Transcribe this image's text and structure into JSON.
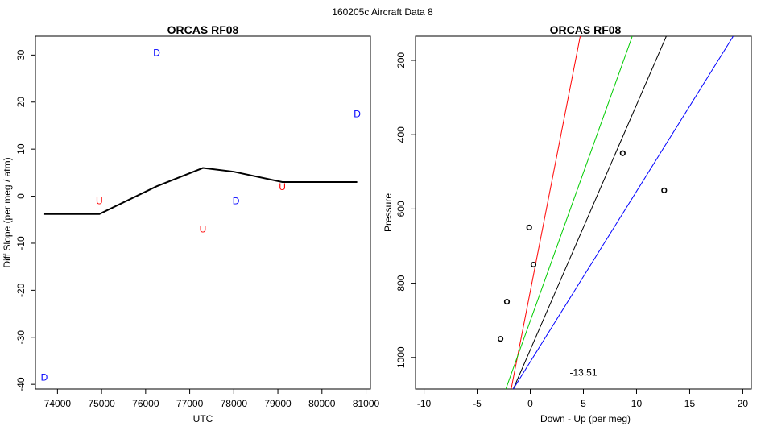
{
  "page_title": "160205c   Aircraft Data 8",
  "chart_data": [
    {
      "type": "line",
      "title": "ORCAS RF08",
      "xlabel": "UTC",
      "ylabel": "Diff Slope (per meg / atm)",
      "xlim": [
        73500,
        81100
      ],
      "ylim": [
        -41,
        34
      ],
      "xticks": [
        74000,
        75000,
        76000,
        77000,
        78000,
        79000,
        80000,
        81000
      ],
      "yticks": [
        -40,
        -30,
        -20,
        -10,
        0,
        10,
        20,
        30
      ],
      "series": [
        {
          "color": "#000000",
          "x": [
            73700,
            74950,
            76250,
            77300,
            78000,
            79100,
            80800
          ],
          "y": [
            -3.8,
            -3.8,
            2.1,
            6.0,
            5.2,
            3.0,
            3.0
          ]
        }
      ],
      "markers": [
        {
          "label": "D",
          "color": "#0000ff",
          "x": 73700,
          "y": -38.5
        },
        {
          "label": "U",
          "color": "#ff0000",
          "x": 74950,
          "y": -1.0
        },
        {
          "label": "D",
          "color": "#0000ff",
          "x": 76250,
          "y": 30.5
        },
        {
          "label": "U",
          "color": "#ff0000",
          "x": 77300,
          "y": -7.0
        },
        {
          "label": "D",
          "color": "#0000ff",
          "x": 78050,
          "y": -1.0
        },
        {
          "label": "U",
          "color": "#ff0000",
          "x": 79100,
          "y": 2.0
        },
        {
          "label": "D",
          "color": "#0000ff",
          "x": 80800,
          "y": 17.5
        }
      ]
    },
    {
      "type": "scatter",
      "title": "ORCAS RF08",
      "xlabel": "Down - Up (per meg)",
      "ylabel": "Pressure",
      "xlim": [
        -10.8,
        20.8
      ],
      "ylim": [
        1085,
        135
      ],
      "y_reversed": true,
      "xticks": [
        -10,
        -5,
        0,
        5,
        10,
        15,
        20
      ],
      "yticks": [
        200,
        400,
        600,
        800,
        1000
      ],
      "points": [
        {
          "x": 8.7,
          "y": 450
        },
        {
          "x": 12.6,
          "y": 550
        },
        {
          "x": -0.1,
          "y": 650
        },
        {
          "x": 0.3,
          "y": 750
        },
        {
          "x": -2.2,
          "y": 850
        },
        {
          "x": -2.8,
          "y": 950
        }
      ],
      "lines": [
        {
          "color": "#ff0000",
          "x": [
            -1.8,
            4.7
          ],
          "y": [
            1085,
            135
          ]
        },
        {
          "color": "#00cc00",
          "x": [
            -2.3,
            9.6
          ],
          "y": [
            1085,
            135
          ]
        },
        {
          "color": "#000000",
          "x": [
            -1.6,
            12.8
          ],
          "y": [
            1085,
            135
          ]
        },
        {
          "color": "#0000ff",
          "x": [
            -1.6,
            19.1
          ],
          "y": [
            1085,
            135
          ]
        }
      ],
      "annotation": {
        "text": "-13.51",
        "x": 5,
        "y": 1040
      }
    }
  ]
}
